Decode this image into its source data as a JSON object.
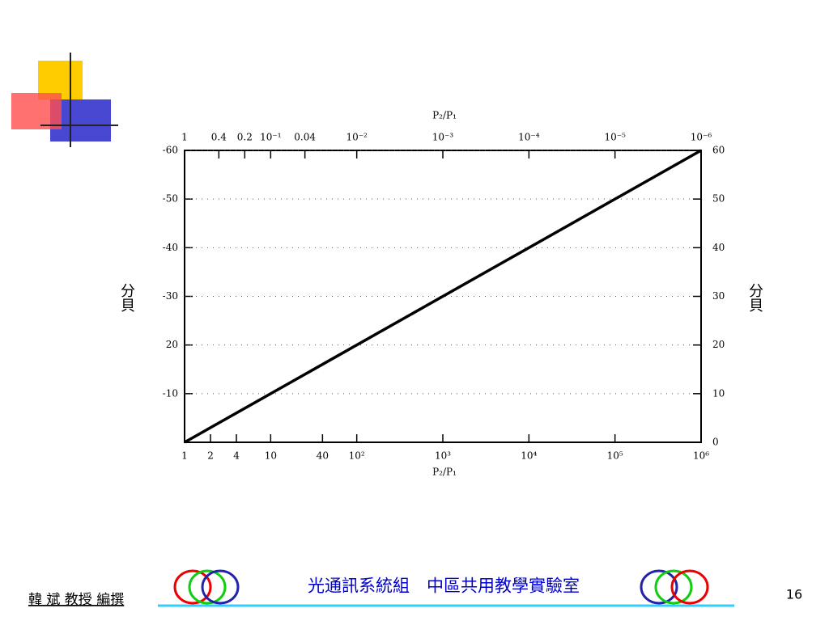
{
  "chart_data": {
    "type": "line",
    "xlabel": "P₂/P₁",
    "x2label": "P₂/P₁",
    "ylabel": "分貝",
    "y2label": "分貝",
    "x": [
      1,
      1000000
    ],
    "values": [
      0,
      60
    ],
    "color": "#000000",
    "xscale": "log",
    "grid": true,
    "xlim": [
      1,
      1000000
    ],
    "xticks": [
      1,
      2,
      4,
      10,
      40,
      {
        "value": 100,
        "label": "10²"
      },
      {
        "value": 1000,
        "label": "10³"
      },
      {
        "value": 10000,
        "label": "10⁴"
      },
      {
        "value": 100000,
        "label": "10⁵"
      },
      {
        "value": 1000000,
        "label": "10⁶"
      }
    ],
    "x2lim": [
      1,
      1e-06
    ],
    "x2ticks": [
      1,
      0.4,
      0.2,
      {
        "value": 0.1,
        "label": "10⁻¹"
      },
      0.04,
      {
        "value": 0.01,
        "label": "10⁻²"
      },
      {
        "value": 0.001,
        "label": "10⁻³"
      },
      {
        "value": 0.0001,
        "label": "10⁻⁴"
      },
      {
        "value": 1e-05,
        "label": "10⁻⁵"
      },
      {
        "value": 1e-06,
        "label": "10⁻⁶"
      }
    ],
    "ylim": [
      0,
      60
    ],
    "yticks": [
      {
        "value": 10,
        "label": "-10"
      },
      {
        "value": 20,
        "label": "20"
      },
      {
        "value": 30,
        "label": "-30"
      },
      {
        "value": 40,
        "label": "-40"
      },
      {
        "value": 50,
        "label": "-50"
      },
      {
        "value": 60,
        "label": "-60"
      }
    ],
    "y2lim": [
      0,
      60
    ],
    "y2ticks": [
      0,
      10,
      20,
      30,
      40,
      50,
      60
    ]
  },
  "footer": {
    "author": "韓 斌 教授 編撰",
    "lab": "光通訊系統組　中區共用教學實驗室",
    "page": "16"
  }
}
